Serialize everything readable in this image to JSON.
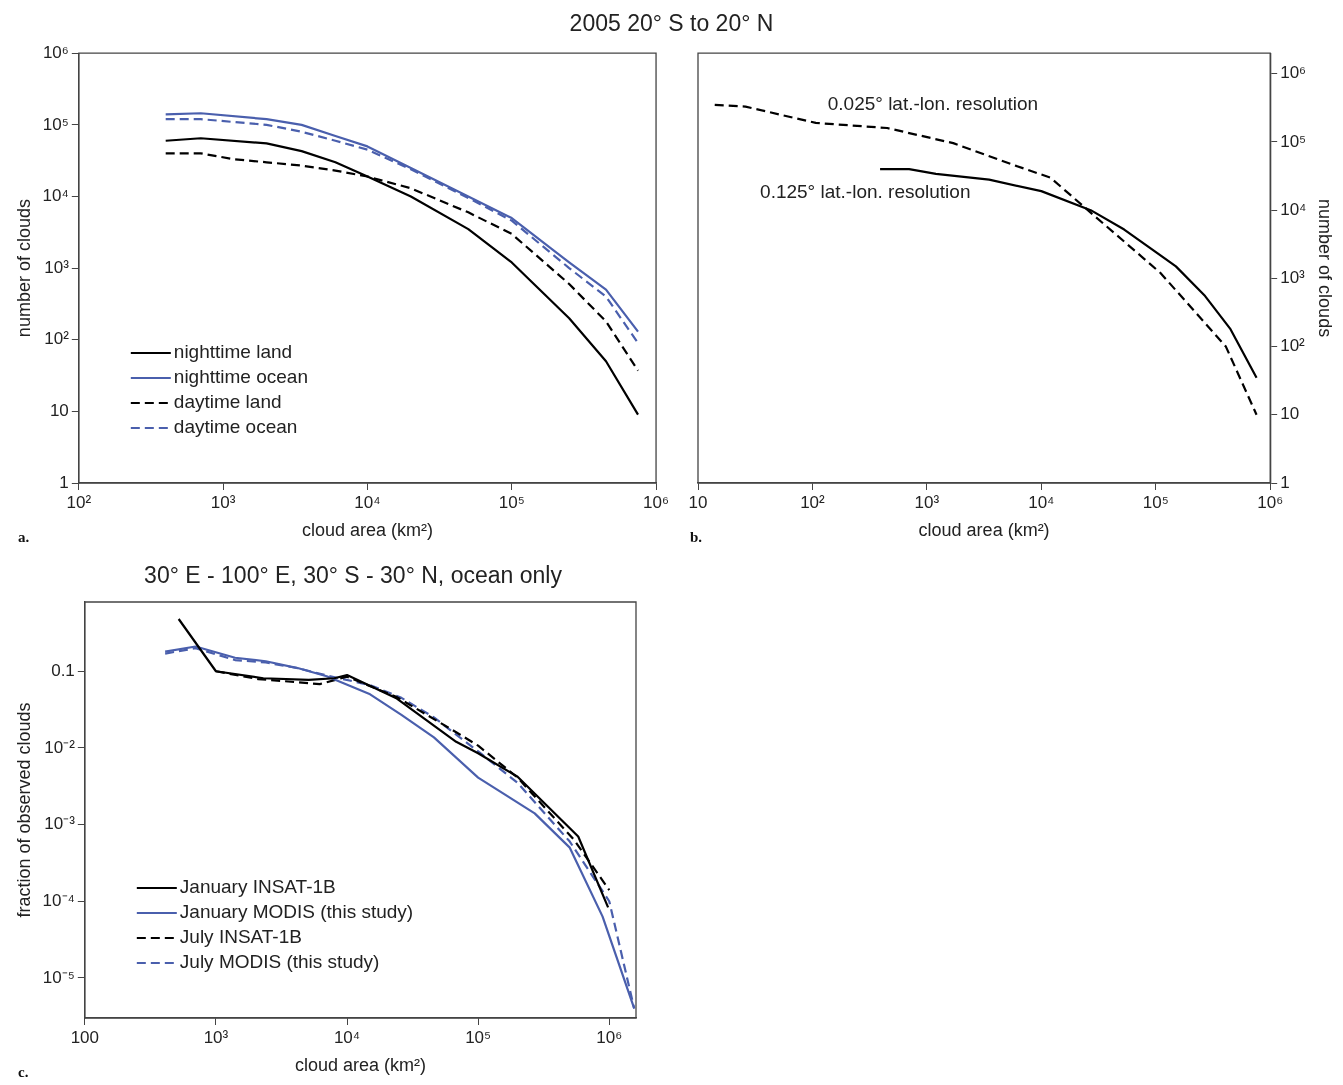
{
  "chart_data": [
    {
      "type": "line",
      "title": "2005 20° S to 20° N",
      "xlabel": "cloud area (km²)",
      "ylabel": "number of clouds",
      "log": "xy",
      "xlim": [
        100,
        1000000
      ],
      "ylim": [
        1,
        1000000
      ],
      "xticks": [
        {
          "value": 100,
          "label": "10²"
        },
        {
          "value": 1000,
          "label": "10³"
        },
        {
          "value": 10000,
          "label": "10⁴"
        },
        {
          "value": 100000,
          "label": "10⁵"
        },
        {
          "value": 1000000,
          "label": "10⁶"
        }
      ],
      "yticks": [
        1,
        10,
        {
          "value": 100,
          "label": "10²"
        },
        {
          "value": 1000,
          "label": "10³"
        },
        {
          "value": 10000,
          "label": "10⁴"
        },
        {
          "value": 100000,
          "label": "10⁵"
        },
        {
          "value": 1000000,
          "label": "10⁶"
        }
      ],
      "legend": "bottom left",
      "marker": "none",
      "grid": false,
      "annotations": [
        "a."
      ],
      "series": [
        {
          "name": "nighttime land",
          "color": "#000000",
          "line_style": "solid",
          "x": [
            400,
            700,
            2000,
            3500,
            6000,
            10000,
            20000,
            50000,
            100000,
            250000,
            450000,
            750000
          ],
          "values": [
            60000,
            65000,
            55000,
            43000,
            30000,
            19000,
            10000,
            3500,
            1200,
            200,
            50,
            9
          ]
        },
        {
          "name": "nighttime ocean",
          "color": "#4a5fad",
          "line_style": "solid",
          "x": [
            400,
            700,
            2000,
            3500,
            6000,
            10000,
            20000,
            50000,
            100000,
            250000,
            450000,
            750000
          ],
          "values": [
            140000,
            145000,
            120000,
            100000,
            70000,
            50000,
            25000,
            10000,
            5000,
            1200,
            500,
            130
          ]
        },
        {
          "name": "daytime land",
          "color": "#000000",
          "line_style": "dashed",
          "x": [
            400,
            700,
            1200,
            2000,
            3500,
            6000,
            10000,
            20000,
            50000,
            100000,
            250000,
            450000,
            750000
          ],
          "values": [
            40000,
            40000,
            33000,
            30000,
            27000,
            23000,
            19000,
            13000,
            6000,
            3000,
            600,
            180,
            37
          ]
        },
        {
          "name": "daytime ocean",
          "color": "#4a5fad",
          "line_style": "dashed",
          "x": [
            400,
            700,
            2000,
            3500,
            6000,
            10000,
            20000,
            50000,
            100000,
            250000,
            450000,
            750000
          ],
          "values": [
            120000,
            120000,
            100000,
            80000,
            60000,
            45000,
            24000,
            9500,
            4600,
            1000,
            400,
            90
          ]
        }
      ]
    },
    {
      "type": "line",
      "xlabel": "cloud area (km²)",
      "ylabel": "number of clouds",
      "log": "xy",
      "xlim": [
        10,
        1000000
      ],
      "ylim": [
        1,
        2000000
      ],
      "xticks": [
        10,
        {
          "value": 100,
          "label": "10²"
        },
        {
          "value": 1000,
          "label": "10³"
        },
        {
          "value": 10000,
          "label": "10⁴"
        },
        {
          "value": 100000,
          "label": "10⁵"
        },
        {
          "value": 1000000,
          "label": "10⁶"
        }
      ],
      "yticks": [
        1,
        10,
        {
          "value": 100,
          "label": "10²"
        },
        {
          "value": 1000,
          "label": "10³"
        },
        {
          "value": 10000,
          "label": "10⁴"
        },
        {
          "value": 100000,
          "label": "10⁵"
        },
        {
          "value": 1000000,
          "label": "10⁶"
        }
      ],
      "legend": false,
      "marker": "none",
      "grid": false,
      "annotations": [
        "b."
      ],
      "series": [
        {
          "name": "0.025° lat.-lon. resolution",
          "color": "#000000",
          "line_style": "dashed",
          "x": [
            14,
            26,
            107,
            450,
            1700,
            5500,
            12000,
            29000,
            110000,
            410000,
            760000
          ],
          "values": [
            350000,
            330000,
            190000,
            160000,
            96000,
            47000,
            30000,
            8300,
            1200,
            100,
            10
          ]
        },
        {
          "name": "0.125° lat.-lon. resolution",
          "color": "#000000",
          "line_style": "solid",
          "x": [
            390,
            700,
            1200,
            3500,
            10000,
            27000,
            53000,
            150000,
            270000,
            450000,
            760000
          ],
          "values": [
            40000,
            40000,
            34000,
            28000,
            19000,
            10000,
            5200,
            1500,
            550,
            180,
            35
          ]
        }
      ]
    },
    {
      "type": "line",
      "title": "30° E - 100° E, 30° S - 30° N, ocean only",
      "xlabel": "cloud area (km²)",
      "ylabel": "fraction of observed clouds",
      "log": "xy",
      "xlim": [
        100,
        1600000
      ],
      "ylim": [
        3e-06,
        0.8
      ],
      "xticks": [
        100,
        {
          "value": 1000,
          "label": "10³"
        },
        {
          "value": 10000,
          "label": "10⁴"
        },
        {
          "value": 100000,
          "label": "10⁵"
        },
        {
          "value": 1000000,
          "label": "10⁶"
        }
      ],
      "yticks": [
        {
          "value": 1e-05,
          "label": "10⁻⁵"
        },
        {
          "value": 0.0001,
          "label": "10⁻⁴"
        },
        {
          "value": 0.001,
          "label": "10⁻³"
        },
        {
          "value": 0.01,
          "label": "10⁻²"
        },
        0.1
      ],
      "legend": "bottom left",
      "marker": "none",
      "grid": false,
      "annotations": [
        "c."
      ],
      "series": [
        {
          "name": "January INSAT-1B",
          "color": "#000000",
          "line_style": "solid",
          "x": [
            520,
            1000,
            2300,
            5100,
            8000,
            10000,
            24000,
            68000,
            100000,
            200000,
            580000,
            980000
          ],
          "values": [
            0.48,
            0.1,
            0.081,
            0.077,
            0.081,
            0.089,
            0.044,
            0.012,
            0.0085,
            0.0042,
            0.0007,
            8.3e-05
          ]
        },
        {
          "name": "January MODIS (this study)",
          "color": "#4a5fad",
          "line_style": "solid",
          "x": [
            410,
            700,
            1400,
            2400,
            4200,
            7000,
            15000,
            26000,
            46000,
            100000,
            270000,
            500000,
            890000,
            1550000
          ],
          "values": [
            0.18,
            0.21,
            0.15,
            0.135,
            0.11,
            0.086,
            0.05,
            0.027,
            0.0137,
            0.0041,
            0.0014,
            0.0005,
            6.3e-05,
            4e-06
          ]
        },
        {
          "name": "July INSAT-1B",
          "color": "#000000",
          "line_style": "dashed",
          "x": [
            1000,
            2100,
            6200,
            10000,
            24000,
            68000,
            100000,
            200000,
            540000,
            1000000
          ],
          "values": [
            0.1,
            0.079,
            0.068,
            0.085,
            0.046,
            0.016,
            0.0107,
            0.0041,
            0.00063,
            0.00014
          ]
        },
        {
          "name": "July MODIS (this study)",
          "color": "#4a5fad",
          "line_style": "dashed",
          "x": [
            410,
            700,
            1400,
            2400,
            4200,
            7000,
            15000,
            26000,
            46000,
            100000,
            200000,
            500000,
            1000000,
            1550000
          ],
          "values": [
            0.17,
            0.2,
            0.14,
            0.13,
            0.11,
            0.088,
            0.066,
            0.045,
            0.025,
            0.009,
            0.0035,
            0.0006,
            0.0001,
            4e-06
          ]
        }
      ]
    }
  ]
}
